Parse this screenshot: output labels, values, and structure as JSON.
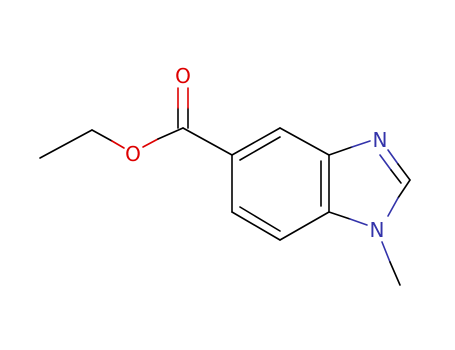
{
  "atoms": [
    {
      "label": "O"
    },
    {
      "label": "O"
    },
    {
      "label": "N"
    },
    {
      "label": "N"
    }
  ]
}
